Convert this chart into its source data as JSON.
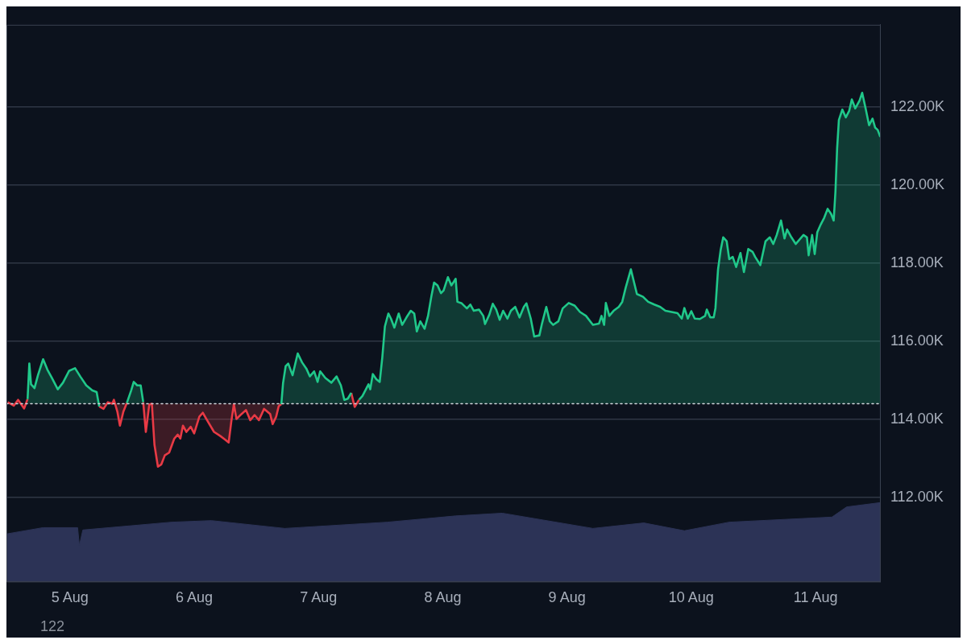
{
  "chart_data": {
    "type": "area",
    "xlim": [
      "--08-04T11:45",
      "--08-11T12:35"
    ],
    "xticks": [
      {
        "value": "--08-05",
        "label": "5 Aug"
      },
      {
        "value": "--08-06",
        "label": "6 Aug"
      },
      {
        "value": "--08-07",
        "label": "7 Aug"
      },
      {
        "value": "--08-08",
        "label": "8 Aug"
      },
      {
        "value": "--08-09",
        "label": "9 Aug"
      },
      {
        "value": "--08-10",
        "label": "10 Aug"
      },
      {
        "value": "--08-11",
        "label": "11 Aug"
      }
    ],
    "ylim": [
      109.85,
      124.1
    ],
    "yticks": [
      {
        "value": 112,
        "label": "112.00K"
      },
      {
        "value": 114,
        "label": "114.00K"
      },
      {
        "value": 116,
        "label": "116.00K"
      },
      {
        "value": 118,
        "label": "118.00K"
      },
      {
        "value": 120,
        "label": "120.00K"
      },
      {
        "value": 122,
        "label": "122.00K"
      }
    ],
    "grid": "y",
    "legend": false,
    "ref_lines": [
      {
        "axis": "y",
        "value": 114.4,
        "color": "#d0d4da",
        "line_style": "dotted"
      }
    ],
    "annotations": [
      "122"
    ],
    "series": [
      {
        "color": "#20c88a",
        "x": [
          "--08-04T15:50",
          "--08-04T16:10",
          "--08-04T16:30",
          "--08-04T17:10",
          "--08-04T17:50",
          "--08-04T18:50",
          "--08-04T19:40",
          "--08-04T20:30",
          "--08-04T21:40",
          "--08-04T22:40",
          "--08-04T23:50",
          "--08-05T01:00",
          "--08-05T02:00",
          "--08-05T03:10",
          "--08-05T04:20",
          "--08-05T05:10",
          "--08-05T05:40",
          "--08-05T06:30",
          "--08-05T07:20",
          "--08-05T08:10",
          "--08-05T08:30",
          "--08-05T09:10",
          "--08-05T09:40",
          "--08-05T10:20",
          "--08-05T11:00",
          "--08-05T11:50",
          "--08-05T12:20",
          "--08-05T13:00",
          "--08-05T13:40",
          "--08-05T14:10",
          "--08-05T14:40",
          "--08-05T15:20",
          "--08-05T15:50",
          "--08-05T16:20",
          "--08-05T17:00",
          "--08-05T17:40",
          "--08-05T18:20",
          "--08-05T19:10",
          "--08-05T20:10",
          "--08-05T20:50",
          "--08-05T21:20",
          "--08-05T21:50",
          "--08-05T22:30",
          "--08-05T23:20",
          "--08-06T00:00",
          "--08-06T01:00",
          "--08-06T01:40",
          "--08-06T02:40",
          "--08-06T03:50",
          "--08-06T05:00",
          "--08-06T06:00",
          "--08-06T06:40",
          "--08-06T07:10",
          "--08-06T07:40",
          "--08-06T08:10",
          "--08-06T09:10",
          "--08-06T10:00",
          "--08-06T10:50",
          "--08-06T11:40",
          "--08-06T12:30",
          "--08-06T13:30",
          "--08-06T14:40",
          "--08-06T15:10",
          "--08-06T15:50",
          "--08-06T16:20",
          "--08-06T16:50",
          "--08-06T17:10",
          "--08-06T17:40",
          "--08-06T18:10",
          "--08-06T19:00",
          "--08-06T20:00",
          "--08-06T20:50",
          "--08-06T21:40",
          "--08-06T22:20",
          "--08-06T23:10",
          "--08-06T23:50",
          "--08-07T00:20",
          "--08-07T01:20",
          "--08-07T02:30",
          "--08-07T03:30",
          "--08-07T04:20",
          "--08-07T05:00",
          "--08-07T05:40",
          "--08-07T06:20",
          "--08-07T07:00",
          "--08-07T07:50",
          "--08-07T08:30",
          "--08-07T09:10",
          "--08-07T09:40",
          "--08-07T10:00",
          "--08-07T10:30",
          "--08-07T11:10",
          "--08-07T11:50",
          "--08-07T12:20",
          "--08-07T12:50",
          "--08-07T13:30",
          "--08-07T14:00",
          "--08-07T14:40",
          "--08-07T15:30",
          "--08-07T16:10",
          "--08-07T17:00",
          "--08-07T17:50",
          "--08-07T18:30",
          "--08-07T19:00",
          "--08-07T19:40",
          "--08-07T20:30",
          "--08-07T21:10",
          "--08-07T21:50",
          "--08-07T22:20",
          "--08-07T23:00",
          "--08-07T23:40",
          "--08-08T00:10",
          "--08-08T01:00",
          "--08-08T01:40",
          "--08-08T02:10",
          "--08-08T02:30",
          "--08-08T02:50",
          "--08-08T03:40",
          "--08-08T04:40",
          "--08-08T05:20",
          "--08-08T06:00",
          "--08-08T07:00",
          "--08-08T07:50",
          "--08-08T08:10",
          "--08-08T09:00",
          "--08-08T09:40",
          "--08-08T10:20",
          "--08-08T11:00",
          "--08-08T11:40",
          "--08-08T12:30",
          "--08-08T13:10",
          "--08-08T14:00",
          "--08-08T14:50",
          "--08-08T15:40",
          "--08-08T16:10",
          "--08-08T17:00",
          "--08-08T17:40",
          "--08-08T18:40",
          "--08-08T19:10",
          "--08-08T20:00",
          "--08-08T20:40",
          "--08-08T21:20",
          "--08-08T22:20",
          "--08-08T23:10",
          "--08-09T00:20",
          "--08-09T01:30",
          "--08-09T02:30",
          "--08-09T03:40",
          "--08-09T05:00",
          "--08-09T06:10",
          "--08-09T06:40",
          "--08-09T07:10",
          "--08-09T07:30",
          "--08-09T08:10",
          "--08-09T09:00",
          "--08-09T10:00",
          "--08-09T10:40",
          "--08-09T11:20",
          "--08-09T12:20",
          "--08-09T12:50",
          "--08-09T13:30",
          "--08-09T14:40",
          "--08-09T15:40",
          "--08-09T16:50",
          "--08-09T18:00",
          "--08-09T19:00",
          "--08-09T20:10",
          "--08-09T21:20",
          "--08-09T22:10",
          "--08-09T22:40",
          "--08-09T23:20",
          "--08-10T00:00",
          "--08-10T00:40",
          "--08-10T01:40",
          "--08-10T02:40",
          "--08-10T03:00",
          "--08-10T03:40",
          "--08-10T04:20",
          "--08-10T04:40",
          "--08-10T05:10",
          "--08-10T05:40",
          "--08-10T06:10",
          "--08-10T06:50",
          "--08-10T07:20",
          "--08-10T08:00",
          "--08-10T08:40",
          "--08-10T09:30",
          "--08-10T10:10",
          "--08-10T11:00",
          "--08-10T11:50",
          "--08-10T12:20",
          "--08-10T13:20",
          "--08-10T14:20",
          "--08-10T15:10",
          "--08-10T15:50",
          "--08-10T16:30",
          "--08-10T17:20",
          "--08-10T18:00",
          "--08-10T18:30",
          "--08-10T19:20",
          "--08-10T20:10",
          "--08-10T20:50",
          "--08-10T21:40",
          "--08-10T22:20",
          "--08-10T22:40",
          "--08-10T23:20",
          "--08-10T23:50",
          "--08-11T00:20",
          "--08-11T01:00",
          "--08-11T01:40",
          "--08-11T02:20",
          "--08-11T03:00",
          "--08-11T03:30",
          "--08-11T03:50",
          "--08-11T04:10",
          "--08-11T04:30",
          "--08-11T05:10",
          "--08-11T05:50",
          "--08-11T06:30",
          "--08-11T07:00",
          "--08-11T07:40",
          "--08-11T08:30",
          "--08-11T09:00",
          "--08-11T09:40",
          "--08-11T10:20",
          "--08-11T11:00",
          "--08-11T11:30",
          "--08-11T12:00",
          "--08-11T12:30"
        ],
        "values": [
          114.52,
          115.43,
          114.9,
          114.8,
          115.13,
          115.54,
          115.27,
          115.07,
          114.77,
          114.94,
          115.24,
          115.31,
          115.1,
          114.87,
          114.74,
          114.7,
          114.33,
          null,
          null,
          null,
          null,
          null,
          null,
          null,
          114.42,
          114.74,
          114.96,
          114.87,
          114.87,
          114.44,
          null,
          null,
          null,
          null,
          null,
          null,
          null,
          null,
          null,
          null,
          null,
          null,
          null,
          null,
          null,
          null,
          null,
          null,
          null,
          null,
          null,
          null,
          null,
          null,
          null,
          null,
          null,
          null,
          null,
          null,
          null,
          null,
          null,
          null,
          null,
          114.39,
          114.93,
          115.36,
          115.43,
          115.13,
          115.69,
          115.46,
          115.3,
          115.1,
          115.23,
          114.96,
          115.23,
          115.06,
          114.94,
          115.1,
          114.87,
          114.5,
          114.53,
          114.68,
          null,
          114.5,
          114.6,
          114.77,
          114.9,
          114.77,
          115.16,
          115.03,
          114.96,
          115.59,
          116.38,
          116.71,
          116.58,
          116.35,
          116.71,
          116.42,
          116.61,
          116.78,
          116.71,
          116.25,
          116.51,
          116.32,
          116.65,
          117.17,
          117.5,
          117.43,
          117.23,
          117.3,
          117.64,
          117.43,
          117.53,
          117.6,
          117.01,
          116.97,
          116.84,
          116.94,
          116.78,
          116.81,
          116.65,
          116.44,
          116.68,
          116.96,
          116.81,
          116.55,
          116.78,
          116.58,
          116.78,
          116.88,
          116.61,
          116.88,
          116.97,
          116.58,
          116.12,
          116.15,
          116.45,
          116.88,
          116.51,
          116.42,
          116.51,
          116.84,
          116.98,
          116.91,
          116.75,
          116.65,
          116.42,
          116.45,
          116.65,
          116.42,
          116.98,
          116.65,
          116.78,
          116.88,
          117.01,
          117.37,
          117.84,
          117.57,
          117.21,
          117.14,
          117.01,
          116.94,
          116.88,
          116.78,
          116.75,
          116.72,
          116.58,
          116.85,
          116.58,
          116.77,
          116.58,
          116.57,
          116.65,
          116.81,
          116.61,
          116.61,
          116.85,
          117.84,
          118.33,
          118.66,
          118.56,
          118.1,
          118.16,
          117.9,
          118.26,
          117.77,
          118.36,
          118.29,
          118.16,
          117.95,
          118.56,
          118.66,
          118.49,
          118.72,
          119.09,
          118.63,
          118.86,
          118.66,
          118.49,
          118.59,
          118.72,
          118.66,
          118.2,
          118.72,
          118.23,
          118.79,
          118.99,
          119.16,
          119.39,
          119.26,
          119.09,
          119.82,
          120.94,
          121.66,
          121.93,
          121.73,
          121.9,
          122.19,
          121.96,
          122.16,
          122.36,
          121.96,
          121.53,
          121.7,
          121.47,
          121.41,
          121.23
        ]
      },
      {
        "color": "#e83a45",
        "x": [
          "--08-04T12:00",
          "--08-04T13:10",
          "--08-04T14:00",
          "--08-04T15:10",
          "--08-04T15:50",
          "--08-05T01:00",
          "--08-05T05:40",
          "--08-05T06:30",
          "--08-05T07:20",
          "--08-05T08:10",
          "--08-05T08:30",
          "--08-05T09:10",
          "--08-05T09:40",
          "--08-05T10:20",
          "--08-05T11:00",
          "--08-05T12:00",
          "--08-05T14:10",
          "--08-05T14:40",
          "--08-05T15:20",
          "--08-05T15:50",
          "--08-05T16:20",
          "--08-05T17:00",
          "--08-05T17:40",
          "--08-05T18:20",
          "--08-05T19:10",
          "--08-05T20:10",
          "--08-05T20:50",
          "--08-05T21:20",
          "--08-05T21:50",
          "--08-05T22:30",
          "--08-05T23:20",
          "--08-06T00:00",
          "--08-06T01:00",
          "--08-06T01:40",
          "--08-06T02:40",
          "--08-06T03:50",
          "--08-06T05:00",
          "--08-06T06:00",
          "--08-06T06:40",
          "--08-06T07:10",
          "--08-06T07:40",
          "--08-06T08:10",
          "--08-06T09:10",
          "--08-06T10:00",
          "--08-06T10:50",
          "--08-06T11:40",
          "--08-06T12:30",
          "--08-06T13:30",
          "--08-06T14:40",
          "--08-06T15:10",
          "--08-06T15:50",
          "--08-06T16:20",
          "--08-06T16:50",
          "--08-07T00:00",
          "--08-07T06:20",
          "--08-07T07:00",
          "--08-07T07:50"
        ],
        "values": [
          114.44,
          114.35,
          114.5,
          114.28,
          114.52,
          null,
          114.33,
          114.27,
          114.44,
          114.4,
          114.5,
          114.2,
          113.84,
          114.2,
          114.42,
          null,
          114.44,
          113.68,
          114.38,
          114.4,
          113.35,
          112.79,
          112.85,
          113.08,
          113.15,
          113.51,
          113.61,
          113.51,
          113.84,
          113.68,
          113.81,
          113.64,
          114.07,
          114.17,
          113.94,
          113.68,
          113.58,
          113.48,
          113.41,
          113.94,
          114.39,
          114.01,
          114.14,
          114.24,
          113.98,
          114.11,
          113.98,
          114.27,
          114.14,
          113.88,
          114.07,
          114.34,
          114.39,
          null,
          114.68,
          114.32,
          114.5
        ]
      },
      {
        "color": "#2c3356",
        "x": [
          "--08-04T11:50",
          "--08-04T18:50",
          "--08-05T01:30",
          "--08-05T01:50",
          "--08-05T02:30",
          "--08-05T19:40",
          "--08-06T03:20",
          "--08-06T17:30",
          "--08-07T13:20",
          "--08-08T02:30",
          "--08-08T11:30",
          "--08-09T05:00",
          "--08-09T14:50",
          "--08-09T22:40",
          "--08-10T07:20",
          "--08-11T03:10",
          "--08-11T06:00",
          "--08-11T12:30"
        ],
        "values": [
          111.07,
          111.23,
          111.23,
          110.77,
          111.17,
          111.37,
          111.41,
          111.21,
          111.37,
          111.53,
          111.6,
          111.21,
          111.35,
          111.15,
          111.37,
          111.5,
          111.76,
          111.87
        ]
      }
    ]
  }
}
